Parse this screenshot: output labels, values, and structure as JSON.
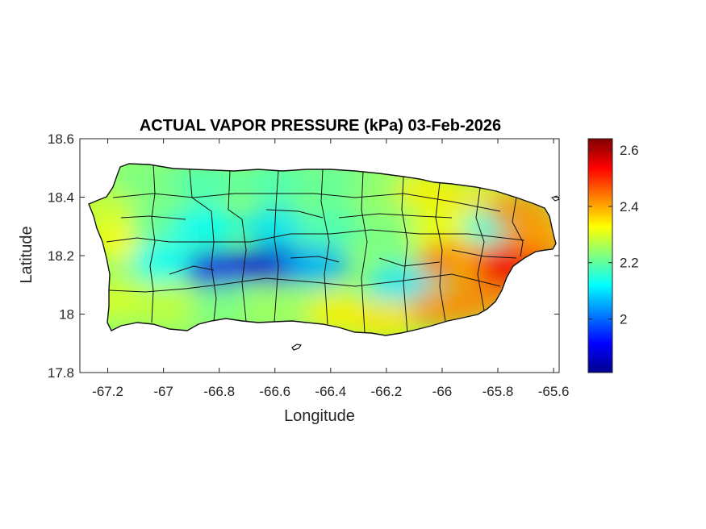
{
  "chart_data": {
    "type": "heatmap",
    "title": "ACTUAL VAPOR PRESSURE (kPa) 03-Feb-2026",
    "xlabel": "Longitude",
    "ylabel": "Latitude",
    "xlim": [
      -67.3,
      -65.58
    ],
    "ylim": [
      17.8,
      18.6
    ],
    "x_ticks": [
      -67.2,
      -67,
      -66.8,
      -66.6,
      -66.4,
      -66.2,
      -66,
      -65.8,
      -65.6
    ],
    "x_tick_labels": [
      "-67.2",
      "-67",
      "-66.8",
      "-66.6",
      "-66.4",
      "-66.2",
      "-66",
      "-65.8",
      "-65.6"
    ],
    "y_ticks": [
      17.8,
      18,
      18.2,
      18.4,
      18.6
    ],
    "y_tick_labels": [
      "17.8",
      "18",
      "18.2",
      "18.4",
      "18.6"
    ],
    "colorbar": {
      "colormap": "jet",
      "clim": [
        1.81,
        2.64
      ],
      "ticks": [
        2,
        2.2,
        2.4,
        2.6
      ],
      "tick_labels": [
        "2",
        "2.2",
        "2.4",
        "2.6"
      ]
    },
    "grid": false,
    "field_samples": [
      {
        "lon": -67.22,
        "lat": 18.36,
        "value": 2.29
      },
      {
        "lon": -67.15,
        "lat": 18.25,
        "value": 2.33
      },
      {
        "lon": -67.17,
        "lat": 18.05,
        "value": 2.3
      },
      {
        "lon": -67.05,
        "lat": 18.45,
        "value": 2.22
      },
      {
        "lon": -67.0,
        "lat": 18.3,
        "value": 2.2
      },
      {
        "lon": -67.0,
        "lat": 18.18,
        "value": 2.12
      },
      {
        "lon": -67.0,
        "lat": 18.03,
        "value": 2.28
      },
      {
        "lon": -66.85,
        "lat": 18.45,
        "value": 2.18
      },
      {
        "lon": -66.85,
        "lat": 18.3,
        "value": 2.12
      },
      {
        "lon": -66.8,
        "lat": 18.15,
        "value": 1.9
      },
      {
        "lon": -66.78,
        "lat": 18.03,
        "value": 2.22
      },
      {
        "lon": -66.6,
        "lat": 18.45,
        "value": 2.18
      },
      {
        "lon": -66.6,
        "lat": 18.3,
        "value": 2.1
      },
      {
        "lon": -66.6,
        "lat": 18.17,
        "value": 1.88
      },
      {
        "lon": -66.6,
        "lat": 18.02,
        "value": 2.25
      },
      {
        "lon": -66.4,
        "lat": 18.45,
        "value": 2.2
      },
      {
        "lon": -66.4,
        "lat": 18.3,
        "value": 2.18
      },
      {
        "lon": -66.45,
        "lat": 18.17,
        "value": 2.06
      },
      {
        "lon": -66.37,
        "lat": 18.0,
        "value": 2.34
      },
      {
        "lon": -66.2,
        "lat": 18.42,
        "value": 2.24
      },
      {
        "lon": -66.2,
        "lat": 18.25,
        "value": 2.22
      },
      {
        "lon": -66.15,
        "lat": 18.1,
        "value": 2.1
      },
      {
        "lon": -66.2,
        "lat": 17.98,
        "value": 2.35
      },
      {
        "lon": -66.05,
        "lat": 18.42,
        "value": 2.34
      },
      {
        "lon": -66.0,
        "lat": 18.28,
        "value": 2.32
      },
      {
        "lon": -65.97,
        "lat": 18.18,
        "value": 2.44
      },
      {
        "lon": -66.0,
        "lat": 18.02,
        "value": 2.42
      },
      {
        "lon": -65.85,
        "lat": 18.38,
        "value": 2.35
      },
      {
        "lon": -65.8,
        "lat": 18.3,
        "value": 2.13
      },
      {
        "lon": -65.85,
        "lat": 18.17,
        "value": 2.4
      },
      {
        "lon": -65.85,
        "lat": 18.05,
        "value": 2.43
      },
      {
        "lon": -65.72,
        "lat": 18.35,
        "value": 2.42
      },
      {
        "lon": -65.7,
        "lat": 18.2,
        "value": 2.49
      },
      {
        "lon": -65.76,
        "lat": 18.16,
        "value": 2.55
      },
      {
        "lon": -65.65,
        "lat": 18.27,
        "value": 2.41
      }
    ]
  }
}
